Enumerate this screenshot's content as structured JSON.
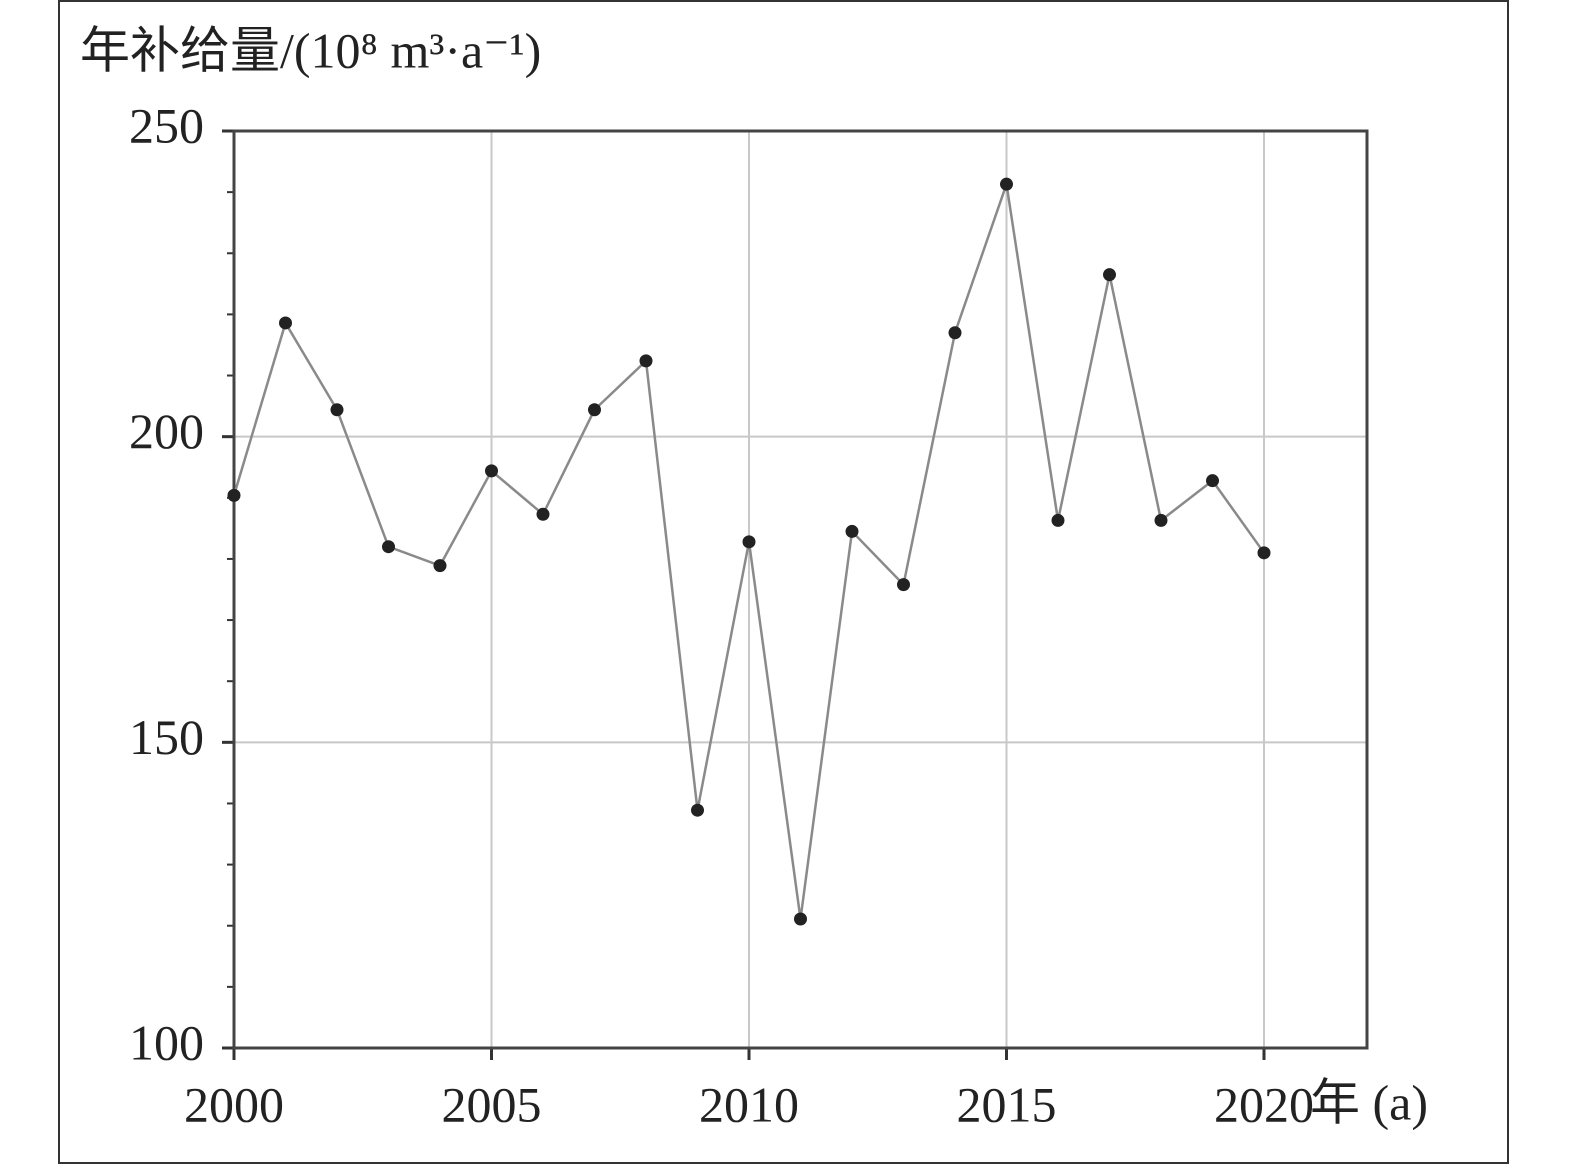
{
  "chart_data": {
    "type": "line",
    "y_label": "年补给量/(10⁸ m³·a⁻¹)",
    "x_label": "年 (a)",
    "x": [
      2000,
      2001,
      2002,
      2003,
      2004,
      2005,
      2006,
      2007,
      2008,
      2009,
      2010,
      2011,
      2012,
      2013,
      2014,
      2015,
      2016,
      2017,
      2018,
      2019,
      2020
    ],
    "series": [
      {
        "color": "#222222",
        "line_color": "#8a8a8a",
        "values": [
          190.4,
          218.6,
          204.4,
          182.0,
          178.9,
          194.4,
          187.3,
          204.4,
          212.4,
          138.9,
          182.8,
          121.1,
          184.5,
          175.8,
          217.0,
          241.3,
          186.3,
          226.5,
          186.3,
          192.8,
          181.0
        ]
      }
    ],
    "xlim": [
      2000,
      2022
    ],
    "xticks": [
      2000,
      2005,
      2010,
      2015,
      2020
    ],
    "ylim": [
      100,
      250
    ],
    "yticks": [
      100,
      150,
      200,
      250
    ],
    "yminorticks": [
      110,
      120,
      130,
      140,
      160,
      170,
      180,
      190,
      210,
      220,
      230,
      240
    ],
    "grid": true
  }
}
